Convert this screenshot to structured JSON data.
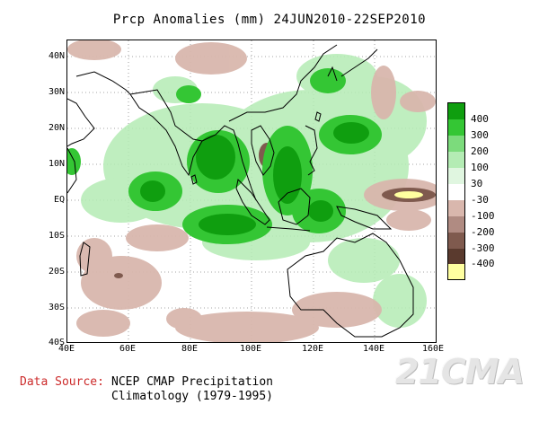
{
  "title": "Prcp Anomalies (mm) 24JUN2010-22SEP2010",
  "lat_labels": [
    "40N",
    "30N",
    "20N",
    "10N",
    "EQ",
    "10S",
    "20S",
    "30S",
    "40S"
  ],
  "lon_labels": [
    "40E",
    "60E",
    "80E",
    "100E",
    "120E",
    "140E",
    "160E"
  ],
  "legend": {
    "levels": [
      "400",
      "300",
      "200",
      "100",
      "30",
      "-30",
      "-100",
      "-200",
      "-300",
      "-400"
    ],
    "colors": [
      "#0f9e0f",
      "#34c634",
      "#7cdb7c",
      "#b4ecb4",
      "#e0f6e0",
      "#ffffff",
      "#d9b7ad",
      "#b08b82",
      "#7f5a4e",
      "#5a3a2e",
      "#ffffa0"
    ]
  },
  "source": {
    "label": "Data Source:",
    "line1": "NCEP CMAP Precipitation",
    "line2": "Climatology (1979-1995)"
  },
  "watermark": "21CMA"
}
